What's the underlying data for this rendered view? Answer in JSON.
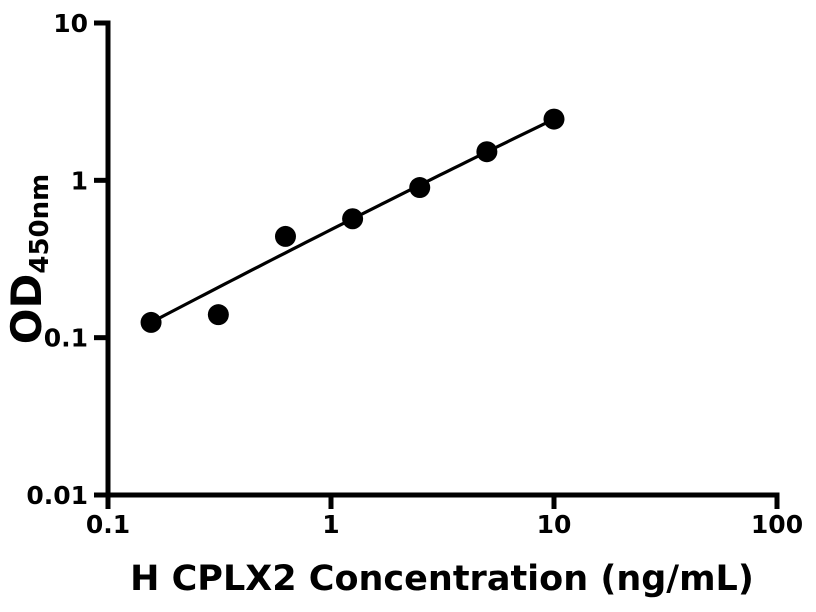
{
  "figure": {
    "background_color": "#ffffff",
    "ink_color": "#000000"
  },
  "chart_data": {
    "type": "scatter",
    "subtype": "standard-curve-with-fit-line",
    "title": "",
    "xlabel": "H CPLX2 Concentration (ng/mL)",
    "ylabel": {
      "text": "OD450nm",
      "main": "OD",
      "subscript": "450nm"
    },
    "x_scale": "log10",
    "y_scale": "log10",
    "xlim": [
      0.1,
      100
    ],
    "ylim": [
      0.01,
      10
    ],
    "grid": false,
    "legend": null,
    "x_ticks": [
      {
        "value": 0.1,
        "label": "0.1"
      },
      {
        "value": 1,
        "label": "1"
      },
      {
        "value": 10,
        "label": "10"
      },
      {
        "value": 100,
        "label": "100"
      }
    ],
    "y_ticks": [
      {
        "value": 0.01,
        "label": "0.01"
      },
      {
        "value": 0.1,
        "label": "0.1"
      },
      {
        "value": 1,
        "label": "1"
      },
      {
        "value": 10,
        "label": "10"
      }
    ],
    "points": [
      {
        "x": 0.156,
        "y": 0.125
      },
      {
        "x": 0.3125,
        "y": 0.14
      },
      {
        "x": 0.625,
        "y": 0.44
      },
      {
        "x": 1.25,
        "y": 0.57
      },
      {
        "x": 2.5,
        "y": 0.9
      },
      {
        "x": 5,
        "y": 1.52
      },
      {
        "x": 10,
        "y": 2.45
      }
    ],
    "fit_curve": {
      "style": "smooth-log-log",
      "anchors": [
        [
          0.156,
          0.125
        ],
        [
          1.25,
          0.57
        ],
        [
          10,
          2.45
        ]
      ]
    },
    "marker": {
      "shape": "circle",
      "radius": 10.5,
      "color": "#000000"
    },
    "line": {
      "width": 3.2,
      "color": "#000000"
    }
  }
}
